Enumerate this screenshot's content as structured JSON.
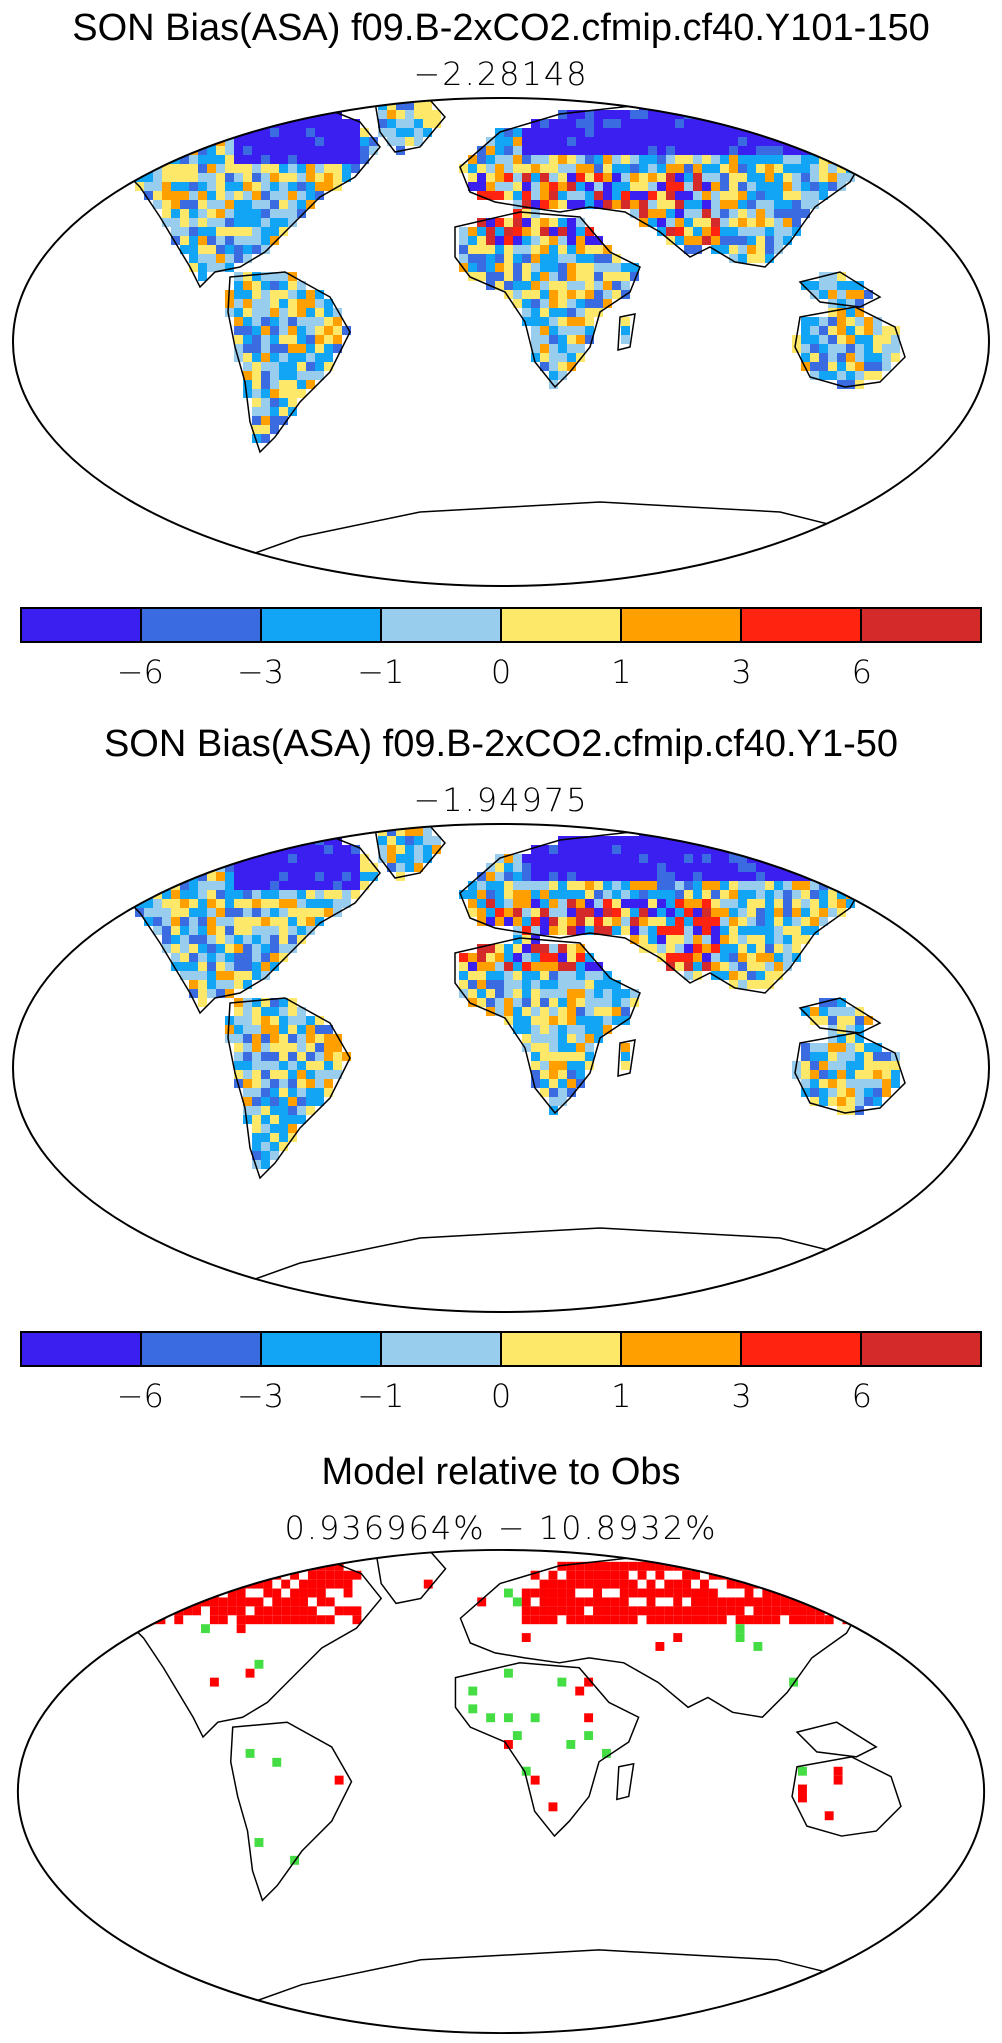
{
  "panels": [
    {
      "title": "SON Bias(ASA) f09.B-2xCO2.cfmip.cf40.Y101-150",
      "subtitle": "−2.28148",
      "map_type": "bias",
      "colorbar": true
    },
    {
      "title": "SON Bias(ASA) f09.B-2xCO2.cfmip.cf40.Y1-50",
      "subtitle": "−1.94975",
      "map_type": "bias",
      "colorbar": true
    },
    {
      "title": "Model relative to Obs",
      "subtitle": "0.936964% − 10.8932%",
      "map_type": "relative",
      "colorbar": false
    }
  ],
  "colorbar": {
    "colors": [
      "#3b1ff0",
      "#3a6be0",
      "#12a5f5",
      "#99cdee",
      "#fde86a",
      "#ffa000",
      "#ff2310",
      "#d42a2a"
    ],
    "tick_labels": [
      "−6",
      "−3",
      "−1",
      "0",
      "1",
      "3",
      "6"
    ]
  },
  "relative_colors": {
    "high": "#ff0000",
    "low": "#44dd44"
  }
}
